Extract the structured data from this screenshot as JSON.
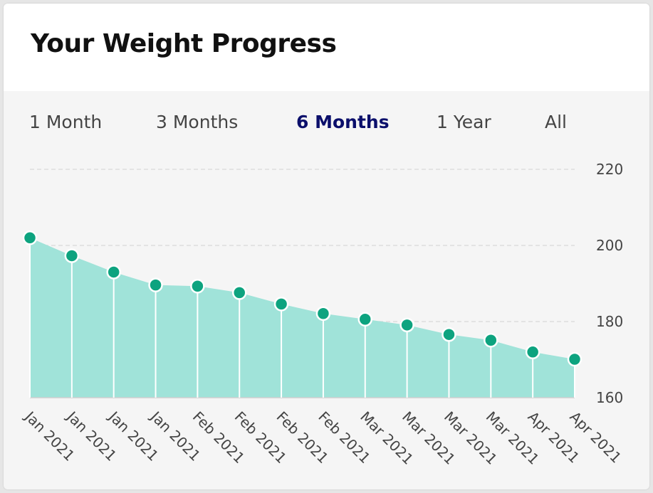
{
  "card": {
    "title": "Your Weight Progress"
  },
  "tabs": [
    {
      "label": "1 Month",
      "active": false
    },
    {
      "label": "3 Months",
      "active": false
    },
    {
      "label": "6 Months",
      "active": true
    },
    {
      "label": "1 Year",
      "active": false
    },
    {
      "label": "All",
      "active": false
    }
  ],
  "colors": {
    "area_fill": "#a0e3d9",
    "point_fill": "#0da37f",
    "active_tab": "#0b0f6b",
    "grid": "#dddddd"
  },
  "chart_data": {
    "type": "area",
    "categories": [
      "Jan 2021",
      "Jan 2021",
      "Jan 2021",
      "Jan 2021",
      "Feb 2021",
      "Feb 2021",
      "Feb 2021",
      "Feb 2021",
      "Mar 2021",
      "Mar 2021",
      "Mar 2021",
      "Mar 2021",
      "Apr 2021",
      "Apr 2021"
    ],
    "values": [
      202,
      197.3,
      193,
      189.6,
      189.3,
      187.6,
      184.6,
      182.1,
      180.6,
      179.1,
      176.6,
      175.1,
      172,
      170.1
    ],
    "ylim": [
      160,
      220
    ],
    "yticks": [
      "160",
      "180",
      "200",
      "220"
    ],
    "grid": true,
    "y_axis_position": "right"
  }
}
